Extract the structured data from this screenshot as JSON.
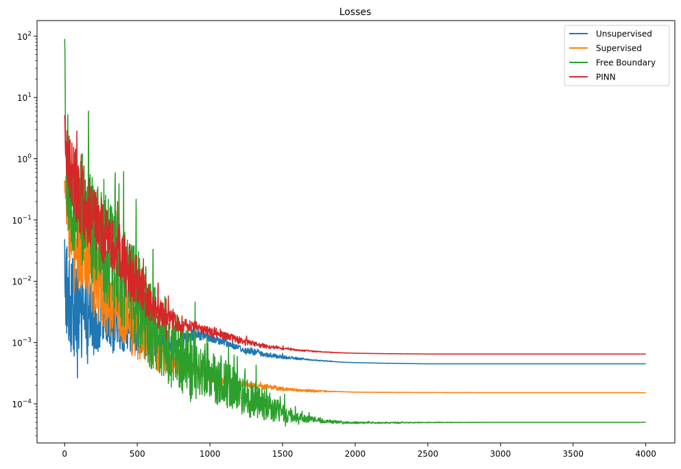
{
  "chart_data": {
    "type": "line",
    "title": "Losses",
    "xlabel": "",
    "ylabel": "",
    "yscale": "log",
    "grid": false,
    "legend_position": "top-right",
    "xlim": [
      -190,
      4200
    ],
    "ylim": [
      2.3e-05,
      180
    ],
    "xticks": [
      0,
      500,
      1000,
      1500,
      2000,
      2500,
      3000,
      3500,
      4000
    ],
    "xtick_labels": [
      "0",
      "500",
      "1000",
      "1500",
      "2000",
      "2500",
      "3000",
      "3500",
      "4000"
    ],
    "yticks": [
      0.0001,
      0.001,
      0.01,
      0.1,
      1,
      10,
      100
    ],
    "ytick_labels": [
      {
        "base": "10",
        "exp": "−4"
      },
      {
        "base": "10",
        "exp": "−3"
      },
      {
        "base": "10",
        "exp": "−2"
      },
      {
        "base": "10",
        "exp": "−1"
      },
      {
        "base": "10",
        "exp": "0"
      },
      {
        "base": "10",
        "exp": "1"
      },
      {
        "base": "10",
        "exp": "2"
      }
    ],
    "series": [
      {
        "name": "Unsupervised",
        "color": "#1f77b4",
        "x": [
          0,
          10,
          20,
          30,
          50,
          80,
          100,
          150,
          200,
          250,
          300,
          350,
          400,
          450,
          500,
          550,
          600,
          650,
          700,
          750,
          800,
          850,
          900,
          950,
          1000,
          1100,
          1200,
          1300,
          1400,
          1500,
          1600,
          1700,
          1800,
          1900,
          2000,
          2200,
          2500,
          3000,
          3500,
          4000
        ],
        "y": [
          0.02,
          0.01,
          0.006,
          0.005,
          0.004,
          0.003,
          0.003,
          0.0028,
          0.0025,
          0.0022,
          0.002,
          0.0018,
          0.0016,
          0.0014,
          0.0012,
          0.0011,
          0.001,
          0.00095,
          0.0009,
          0.0009,
          0.0011,
          0.0013,
          0.0014,
          0.0013,
          0.0012,
          0.001,
          0.0008,
          0.0007,
          0.00063,
          0.00058,
          0.00055,
          0.00052,
          0.0005,
          0.00048,
          0.00047,
          0.00046,
          0.00045,
          0.00045,
          0.00045,
          0.00045
        ],
        "noise": [
          0.9,
          0.9,
          0.9,
          0.9,
          0.8,
          0.8,
          0.75,
          0.65,
          0.55,
          0.5,
          0.45,
          0.4,
          0.35,
          0.3,
          0.3,
          0.25,
          0.25,
          0.2,
          0.2,
          0.15,
          0.12,
          0.1,
          0.1,
          0.08,
          0.07,
          0.06,
          0.05,
          0.05,
          0.04,
          0.03,
          0.02,
          0.01,
          0.005,
          0.0,
          0.0,
          0.0,
          0.0,
          0.0,
          0.0,
          0.0
        ]
      },
      {
        "name": "Supervised",
        "color": "#ff7f0e",
        "x": [
          0,
          10,
          30,
          50,
          100,
          150,
          200,
          250,
          300,
          350,
          400,
          450,
          500,
          550,
          600,
          650,
          700,
          750,
          800,
          850,
          900,
          950,
          1000,
          1100,
          1200,
          1300,
          1400,
          1500,
          1600,
          1700,
          1800,
          1900,
          2000,
          2200,
          2500,
          3000,
          3500,
          4000
        ],
        "y": [
          0.3,
          0.25,
          0.12,
          0.06,
          0.03,
          0.02,
          0.012,
          0.008,
          0.005,
          0.004,
          0.003,
          0.002,
          0.0015,
          0.0011,
          0.0008,
          0.0006,
          0.00048,
          0.00042,
          0.0004,
          0.00038,
          0.00034,
          0.00031,
          0.00028,
          0.00024,
          0.00021,
          0.0002,
          0.00019,
          0.000175,
          0.000168,
          0.000163,
          0.00016,
          0.000158,
          0.000155,
          0.000154,
          0.000153,
          0.000152,
          0.000152,
          0.000152
        ],
        "noise": [
          0.3,
          0.5,
          0.7,
          0.7,
          0.7,
          0.7,
          0.7,
          0.65,
          0.6,
          0.55,
          0.5,
          0.5,
          0.45,
          0.4,
          0.35,
          0.3,
          0.25,
          0.2,
          0.15,
          0.12,
          0.1,
          0.1,
          0.1,
          0.08,
          0.06,
          0.05,
          0.04,
          0.03,
          0.02,
          0.02,
          0.01,
          0.0,
          0.0,
          0.0,
          0.0,
          0.0,
          0.0,
          0.0
        ]
      },
      {
        "name": "Free Boundary",
        "color": "#2ca02c",
        "x": [
          0,
          5,
          10,
          20,
          50,
          100,
          150,
          200,
          250,
          300,
          350,
          400,
          450,
          500,
          550,
          600,
          650,
          700,
          750,
          800,
          850,
          900,
          950,
          1000,
          1100,
          1200,
          1300,
          1400,
          1500,
          1600,
          1700,
          1800,
          1900,
          2000,
          2200,
          2500,
          3000,
          3500,
          4000
        ],
        "y": [
          90,
          3,
          0.6,
          0.4,
          0.25,
          0.15,
          0.1,
          0.06,
          0.04,
          0.03,
          0.02,
          0.012,
          0.008,
          0.005,
          0.003,
          0.002,
          0.0012,
          0.001,
          0.0008,
          0.0006,
          0.0005,
          0.0004,
          0.00035,
          0.0003,
          0.00022,
          0.00015,
          0.00011,
          9e-05,
          7e-05,
          6e-05,
          5.5e-05,
          5.2e-05,
          5e-05,
          4.9e-05,
          4.9e-05,
          4.95e-05,
          5e-05,
          5e-05,
          5e-05
        ],
        "noise": [
          0.0,
          0.3,
          0.6,
          0.8,
          0.9,
          0.9,
          0.9,
          0.9,
          0.9,
          0.9,
          0.9,
          0.9,
          0.85,
          0.8,
          0.8,
          0.75,
          0.7,
          0.7,
          0.65,
          0.6,
          0.6,
          0.55,
          0.5,
          0.45,
          0.4,
          0.35,
          0.3,
          0.25,
          0.15,
          0.08,
          0.05,
          0.03,
          0.02,
          0.015,
          0.01,
          0.005,
          0.0,
          0.0,
          0.0
        ]
      },
      {
        "name": "PINN",
        "color": "#d62728",
        "x": [
          0,
          5,
          10,
          30,
          50,
          100,
          150,
          200,
          250,
          300,
          350,
          400,
          450,
          500,
          550,
          600,
          650,
          700,
          750,
          800,
          850,
          900,
          950,
          1000,
          1100,
          1200,
          1300,
          1400,
          1500,
          1600,
          1700,
          1800,
          1900,
          2000,
          2200,
          2500,
          3000,
          3500,
          4000
        ],
        "y": [
          3.5,
          2.0,
          1.2,
          0.8,
          0.5,
          0.25,
          0.15,
          0.1,
          0.07,
          0.05,
          0.035,
          0.025,
          0.015,
          0.01,
          0.006,
          0.004,
          0.003,
          0.0025,
          0.0022,
          0.002,
          0.0019,
          0.0018,
          0.0016,
          0.0015,
          0.0013,
          0.0011,
          0.00095,
          0.00085,
          0.0008,
          0.00075,
          0.00072,
          0.0007,
          0.00068,
          0.00067,
          0.00066,
          0.00065,
          0.00065,
          0.00065,
          0.00065
        ],
        "noise": [
          0.2,
          0.4,
          0.5,
          0.6,
          0.6,
          0.6,
          0.6,
          0.55,
          0.55,
          0.5,
          0.5,
          0.45,
          0.45,
          0.4,
          0.35,
          0.3,
          0.25,
          0.2,
          0.15,
          0.12,
          0.1,
          0.1,
          0.08,
          0.07,
          0.06,
          0.05,
          0.04,
          0.03,
          0.02,
          0.015,
          0.01,
          0.005,
          0.003,
          0.0,
          0.0,
          0.0,
          0.0,
          0.0,
          0.0
        ]
      }
    ]
  }
}
